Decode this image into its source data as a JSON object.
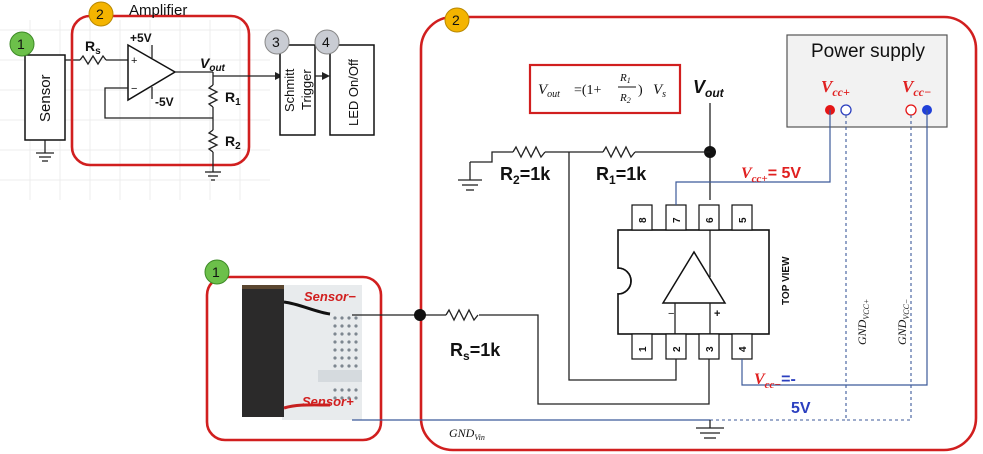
{
  "top_schematic": {
    "sensor": {
      "badge": "1",
      "label": "Sensor"
    },
    "amplifier": {
      "badge": "2",
      "title": "Amplifier",
      "rs": "R",
      "rs_sub": "s",
      "vpos": "+5V",
      "vneg": "-5V",
      "vout": "V",
      "vout_sub": "out",
      "r1": "R",
      "r1_sub": "1",
      "r2": "R",
      "r2_sub": "2"
    },
    "schmitt": {
      "badge": "3",
      "label_line1": "Schmitt",
      "label_line2": "Trigger"
    },
    "led": {
      "badge": "4",
      "label": "LED On/Off"
    }
  },
  "sensor_photo": {
    "badge": "1",
    "sensor_minus": "Sensor−",
    "sensor_plus": "Sensor+"
  },
  "circuit": {
    "badge": "2",
    "formula": {
      "lhs": "V",
      "lhs_sub": "out",
      "mid": "=(1+",
      "num": "R",
      "num_sub": "1",
      "den": "R",
      "den_sub": "2",
      "rhs_close": ")",
      "rhs": "V",
      "rhs_sub": "s"
    },
    "vout": "V",
    "vout_sub": "out",
    "r2_label": "R",
    "r2_sub": "2",
    "r2_val": "=1k",
    "r1_label": "R",
    "r1_sub": "1",
    "r1_val": "=1k",
    "rs_label": "R",
    "rs_sub": "s",
    "rs_val": "=1k",
    "vcc_pos_label": "V",
    "vcc_pos_sub": "cc+",
    "vcc_pos_val": "= 5V",
    "vcc_neg_label": "V",
    "vcc_neg_sub": "cc−",
    "vcc_neg_val1": "=-",
    "vcc_neg_val2": "5V",
    "top_view": "TOP VIEW",
    "pins_top": [
      "8",
      "7",
      "6",
      "5"
    ],
    "pins_bottom": [
      "1",
      "2",
      "3",
      "4"
    ],
    "pin_minus": "−",
    "pin_plus": "+",
    "gnd_vin": "GND",
    "gnd_vin_sub": "Vin",
    "gnd_vccp": "GND",
    "gnd_vccp_sub": "VCC+",
    "gnd_vccn": "GND",
    "gnd_vccn_sub": "VCC−"
  },
  "power_supply": {
    "title": "Power supply",
    "vcc_pos": "V",
    "vcc_pos_sub": "cc+",
    "vcc_neg": "V",
    "vcc_neg_sub": "cc−"
  },
  "colors": {
    "red": "#d11f1f",
    "badge_green": "#6cc04a",
    "badge_orange": "#f4b400",
    "badge_gray": "#c9ccd3",
    "wire_blue": "#3c5a9a",
    "label_red": "#e02020",
    "label_blue": "#2b3fbf"
  }
}
